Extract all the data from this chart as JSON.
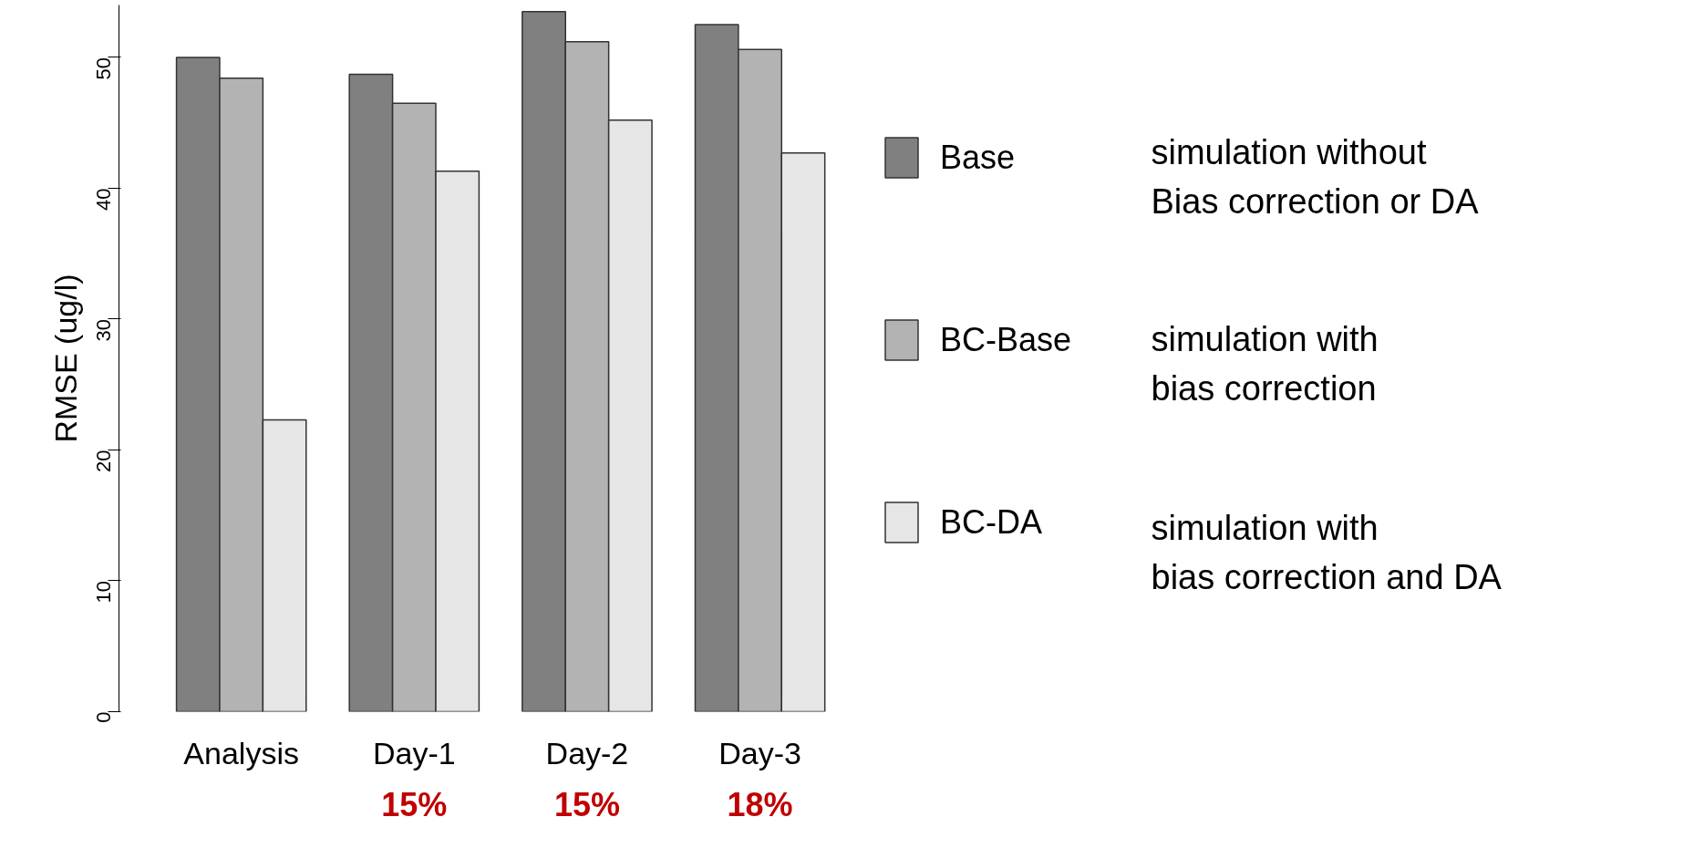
{
  "chart_data": {
    "type": "bar",
    "ylabel": "RMSE (ug/l)",
    "categories": [
      "Analysis",
      "Day-1",
      "Day-2",
      "Day-3"
    ],
    "series": [
      {
        "name": "Base",
        "color": "#808080",
        "values": [
          50.0,
          48.7,
          53.5,
          52.5
        ]
      },
      {
        "name": "BC-Base",
        "color": "#b3b3b3",
        "values": [
          48.4,
          46.5,
          51.2,
          50.6
        ]
      },
      {
        "name": "BC-DA",
        "color": "#e6e6e6",
        "values": [
          22.3,
          41.3,
          45.2,
          42.7
        ]
      }
    ],
    "ylim": [
      0,
      54
    ],
    "yticks": [
      0,
      10,
      20,
      30,
      40,
      50
    ],
    "grid": false,
    "legend": "right",
    "annotations": [
      "15%",
      "15%",
      "18%",
      "simulation without\nBias correction or DA",
      "simulation with\nbias correction",
      "simulation with\nbias correction and DA"
    ]
  }
}
